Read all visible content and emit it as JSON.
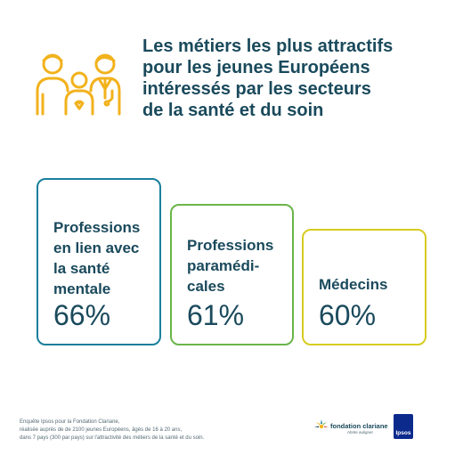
{
  "header": {
    "icon": "people-care-icon",
    "title_lines": [
      "Les métiers les plus attractifs",
      "pour les jeunes Européens",
      "intéressés par les secteurs",
      "de la santé et du soin"
    ]
  },
  "cards": [
    {
      "label_lines": [
        "Professions",
        "en lien avec",
        "la santé",
        "mentale"
      ],
      "value": "66%",
      "color": "#1a7f9b"
    },
    {
      "label_lines": [
        "Professions",
        "paramédi-",
        "cales"
      ],
      "value": "61%",
      "color": "#6ab54a"
    },
    {
      "label_lines": [
        "Médecins"
      ],
      "value": "60%",
      "color": "#d7cc1f"
    }
  ],
  "footnote_lines": [
    "Enquête Ipsos pour la Fondation Clariane,",
    "réalisée auprès de de 2100 jeunes Européens, âgés de 16 à 20 ans,",
    "dans 7 pays (300 par pays) sur l'attractivité des métiers de la santé et du soin."
  ],
  "logos": {
    "fondation_name": "fondation clariane",
    "fondation_sub": "Abrite auligner",
    "ipsos_text": "Ipsos"
  },
  "colors": {
    "title": "#1a4a5c",
    "icon": "#f2b21d",
    "ipsos": "#0b2a8c"
  }
}
